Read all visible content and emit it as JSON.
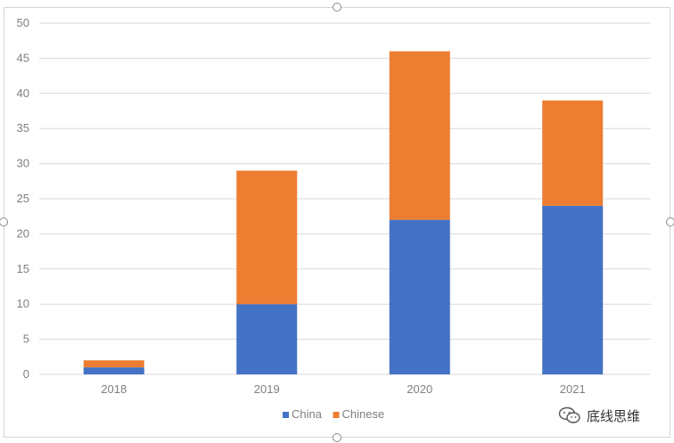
{
  "chart_data": {
    "type": "bar",
    "stacked": true,
    "categories": [
      "2018",
      "2019",
      "2020",
      "2021"
    ],
    "series": [
      {
        "name": "China",
        "color": "#4472C4",
        "values": [
          1,
          10,
          22,
          24
        ]
      },
      {
        "name": "Chinese",
        "color": "#ED7D31",
        "values": [
          1,
          19,
          24,
          15
        ]
      }
    ],
    "ylim": [
      0,
      50
    ],
    "yticks": [
      0,
      5,
      10,
      15,
      20,
      25,
      30,
      35,
      40,
      45,
      50
    ],
    "grid": true,
    "legend": "bottom-center",
    "title": "",
    "xlabel": "",
    "ylabel": ""
  },
  "watermark": {
    "icon": "wechat-icon",
    "text": "底线思维"
  },
  "colors": {
    "gridline": "#d9d9d9",
    "tick_text": "#7f7f7f"
  }
}
